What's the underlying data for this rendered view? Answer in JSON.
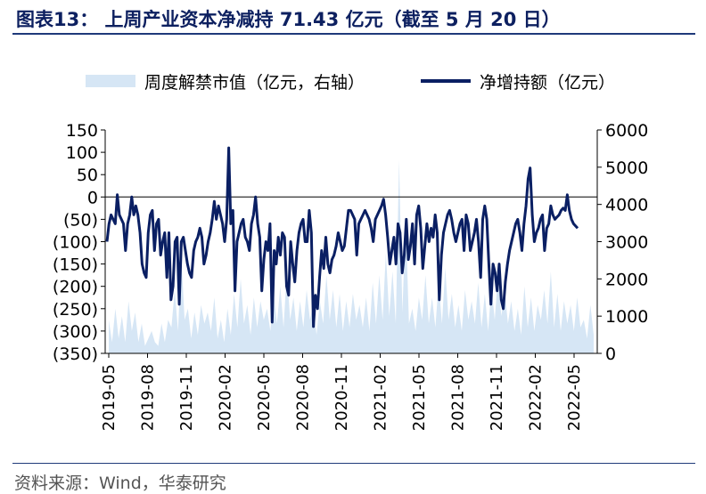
{
  "title": "图表13： 上周产业资本净减持 71.43 亿元（截至 5 月 20 日）",
  "source": "资料来源：Wind，华泰研究",
  "colors": {
    "area": "#d6e6f5",
    "line": "#0a1f63",
    "title": "#0d2060"
  },
  "chart_data": {
    "type": "line",
    "legend_position": "top",
    "grid": false,
    "series": [
      {
        "name": "周度解禁市值（亿元，右轴）",
        "type": "area",
        "axis": "right",
        "values": [
          900,
          300,
          1200,
          400,
          1000,
          300,
          1400,
          600,
          1100,
          300,
          800,
          200,
          400,
          600,
          300,
          200,
          800,
          300,
          900,
          700,
          1700,
          600,
          2600,
          900,
          1200,
          400,
          1100,
          500,
          1300,
          800,
          1100,
          600,
          1500,
          400,
          900,
          300,
          1200,
          500,
          1600,
          700,
          2000,
          800,
          1300,
          500,
          1500,
          700,
          1400,
          900,
          1200,
          600,
          1600,
          800,
          1800,
          700,
          2200,
          900,
          1500,
          600,
          1400,
          700,
          1700,
          900,
          1300,
          500,
          1400,
          800,
          2100,
          900,
          1700,
          700,
          1600,
          600,
          1400,
          700,
          1600,
          900,
          1300,
          700,
          1500,
          600,
          1900,
          800,
          2100,
          900,
          2700,
          1000,
          2200,
          800,
          5200,
          1100,
          3600,
          800,
          1200,
          600,
          1500,
          900,
          2100,
          800,
          1500,
          700,
          1900,
          800,
          2300,
          900,
          1600,
          700,
          1300,
          600,
          1700,
          900,
          1400,
          800,
          1900,
          700,
          1600,
          600,
          1800,
          900,
          2100,
          1000,
          1700,
          800,
          1400,
          600,
          1200,
          500,
          1800,
          700,
          1500,
          600,
          1300,
          900,
          1700,
          800,
          2200,
          700,
          1600,
          600,
          1400,
          800,
          1300,
          600,
          1500,
          700,
          900,
          400,
          1300,
          500
        ]
      },
      {
        "name": "净增持额（亿元）",
        "type": "line",
        "axis": "left",
        "values": [
          -100,
          -60,
          -40,
          -50,
          -60,
          5,
          -40,
          -50,
          -60,
          -120,
          -60,
          -40,
          0,
          -40,
          -20,
          -40,
          -80,
          -150,
          -170,
          -180,
          -80,
          -40,
          -30,
          -120,
          -60,
          -50,
          -130,
          -100,
          -80,
          -180,
          -80,
          -230,
          -200,
          -100,
          -90,
          -240,
          -100,
          -90,
          -120,
          -150,
          -170,
          -180,
          -120,
          -100,
          -90,
          -70,
          -90,
          -150,
          -130,
          -100,
          -80,
          -50,
          -10,
          -50,
          -20,
          -40,
          -60,
          -100,
          -50,
          110,
          -60,
          -30,
          -210,
          -100,
          -80,
          -60,
          -50,
          -90,
          -100,
          -120,
          -60,
          -40,
          0,
          -60,
          -90,
          -210,
          -140,
          -100,
          -120,
          -60,
          -280,
          -120,
          -150,
          -90,
          -130,
          -80,
          -90,
          -200,
          -220,
          -100,
          -150,
          -190,
          -120,
          -80,
          -60,
          -50,
          -100,
          -100,
          -30,
          -80,
          -290,
          -220,
          -250,
          -180,
          -120,
          -160,
          -90,
          -150,
          -170,
          -140,
          -130,
          -110,
          -80,
          -100,
          -120,
          -110,
          -70,
          -30,
          -30,
          -40,
          -50,
          -130,
          -60,
          -50,
          -40,
          -30,
          -40,
          -50,
          -70,
          -100,
          -50,
          -40,
          -30,
          -20,
          -5,
          -40,
          -90,
          -150,
          -120,
          -90,
          -150,
          -60,
          -80,
          -170,
          -130,
          -50,
          -140,
          -110,
          -60,
          -150,
          -40,
          -20,
          -70,
          -160,
          -110,
          -60,
          -100,
          -70,
          -90,
          -40,
          -80,
          -230,
          -130,
          -80,
          -60,
          -40,
          -30,
          -50,
          -80,
          -100,
          -80,
          -60,
          -50,
          -120,
          -40,
          -60,
          -120,
          -100,
          -80,
          -50,
          -100,
          -180,
          -50,
          -20,
          -50,
          -150,
          -240,
          -150,
          -170,
          -210,
          -150,
          -230,
          -250,
          -190,
          -150,
          -120,
          -100,
          -80,
          -60,
          -50,
          -80,
          -120,
          -60,
          -20,
          40,
          65,
          -40,
          -100,
          -80,
          -70,
          -50,
          -40,
          -120,
          -70,
          -60,
          -20,
          -40,
          -50,
          -45,
          -40,
          -30,
          -25,
          -30,
          5,
          -30,
          -50,
          -60,
          -65,
          -70
        ]
      }
    ],
    "x_ticks": [
      "2019-05",
      "2019-08",
      "2019-11",
      "2020-02",
      "2020-05",
      "2020-08",
      "2020-11",
      "2021-02",
      "2021-05",
      "2021-08",
      "2021-11",
      "2022-02",
      "2022-05"
    ],
    "y_left": {
      "min": -350,
      "max": 150,
      "step": 50,
      "ticks": [
        "150",
        "100",
        "50",
        "0",
        "(50)",
        "(100)",
        "(150)",
        "(200)",
        "(250)",
        "(300)",
        "(350)"
      ]
    },
    "y_right": {
      "min": 0,
      "max": 6000,
      "step": 1000,
      "ticks": [
        "6000",
        "5000",
        "4000",
        "3000",
        "2000",
        "1000",
        "0"
      ]
    }
  }
}
